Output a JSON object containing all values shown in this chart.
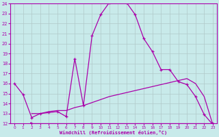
{
  "xlabel": "Windchill (Refroidissement éolien,°C)",
  "bg_color": "#c8eaea",
  "grid_color": "#b0c8c8",
  "line_color": "#aa00aa",
  "xlim": [
    -0.5,
    23.5
  ],
  "ylim": [
    12,
    24
  ],
  "yticks": [
    12,
    13,
    14,
    15,
    16,
    17,
    18,
    19,
    20,
    21,
    22,
    23,
    24
  ],
  "xticks": [
    0,
    1,
    2,
    3,
    4,
    5,
    6,
    7,
    8,
    9,
    10,
    11,
    12,
    13,
    14,
    15,
    16,
    17,
    18,
    19,
    20,
    21,
    22,
    23
  ],
  "line1_x": [
    0,
    1,
    2,
    3,
    4,
    5,
    6,
    7,
    8,
    9,
    10,
    11,
    12,
    13,
    14,
    15,
    16,
    17,
    18,
    19,
    20,
    21,
    22,
    23
  ],
  "line1_y": [
    16.0,
    14.9,
    12.6,
    13.0,
    13.1,
    13.2,
    12.7,
    18.5,
    13.8,
    20.8,
    22.9,
    24.1,
    24.2,
    24.1,
    22.9,
    20.5,
    19.2,
    17.4,
    17.4,
    16.2,
    15.9,
    14.7,
    12.9,
    11.9
  ],
  "line2_x": [
    2,
    23
  ],
  "line2_y": [
    12.0,
    12.0
  ],
  "line3_x": [
    2,
    3,
    4,
    5,
    6,
    7,
    8,
    9,
    10,
    11,
    12,
    13,
    14,
    15,
    16,
    17,
    18,
    19,
    20,
    21,
    22,
    23
  ],
  "line3_y": [
    13.0,
    13.0,
    13.2,
    13.3,
    13.3,
    13.6,
    13.8,
    14.1,
    14.4,
    14.7,
    14.9,
    15.1,
    15.3,
    15.5,
    15.7,
    15.9,
    16.1,
    16.3,
    16.5,
    16.0,
    14.7,
    11.9
  ]
}
